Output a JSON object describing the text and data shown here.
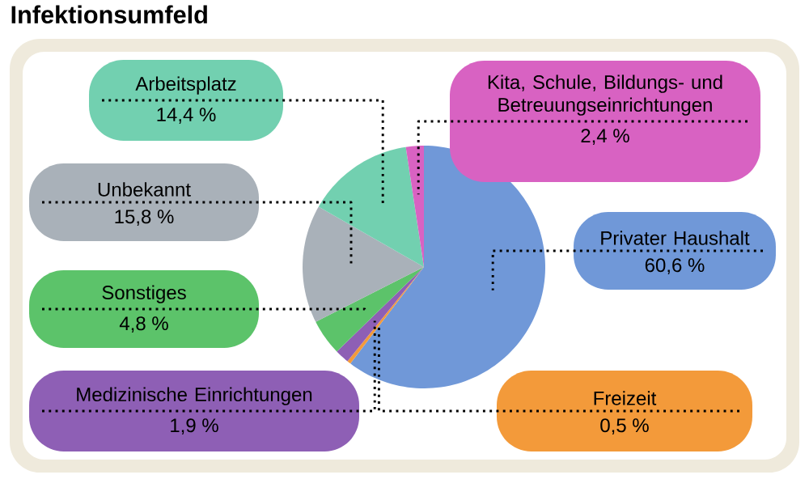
{
  "chart_data": {
    "type": "pie",
    "title": "Infektionsumfeld",
    "categories": [
      "Privater Haushalt",
      "Freizeit",
      "Medizinische Einrichtungen",
      "Sonstiges",
      "Unbekannt",
      "Arbeitsplatz",
      "Kita, Schule, Bildungs- und Betreuungseinrichtungen"
    ],
    "values": [
      60.6,
      0.5,
      1.9,
      4.8,
      15.8,
      14.4,
      2.4
    ],
    "value_labels": [
      "60,6 %",
      "0,5 %",
      "1,9 %",
      "4,8 %",
      "15,8 %",
      "14,4 %",
      "2,4 %"
    ],
    "colors": [
      "#7098d8",
      "#f39a3a",
      "#8e5fb5",
      "#5cc36a",
      "#a9b1b9",
      "#72d0b0",
      "#d862c2"
    ]
  }
}
